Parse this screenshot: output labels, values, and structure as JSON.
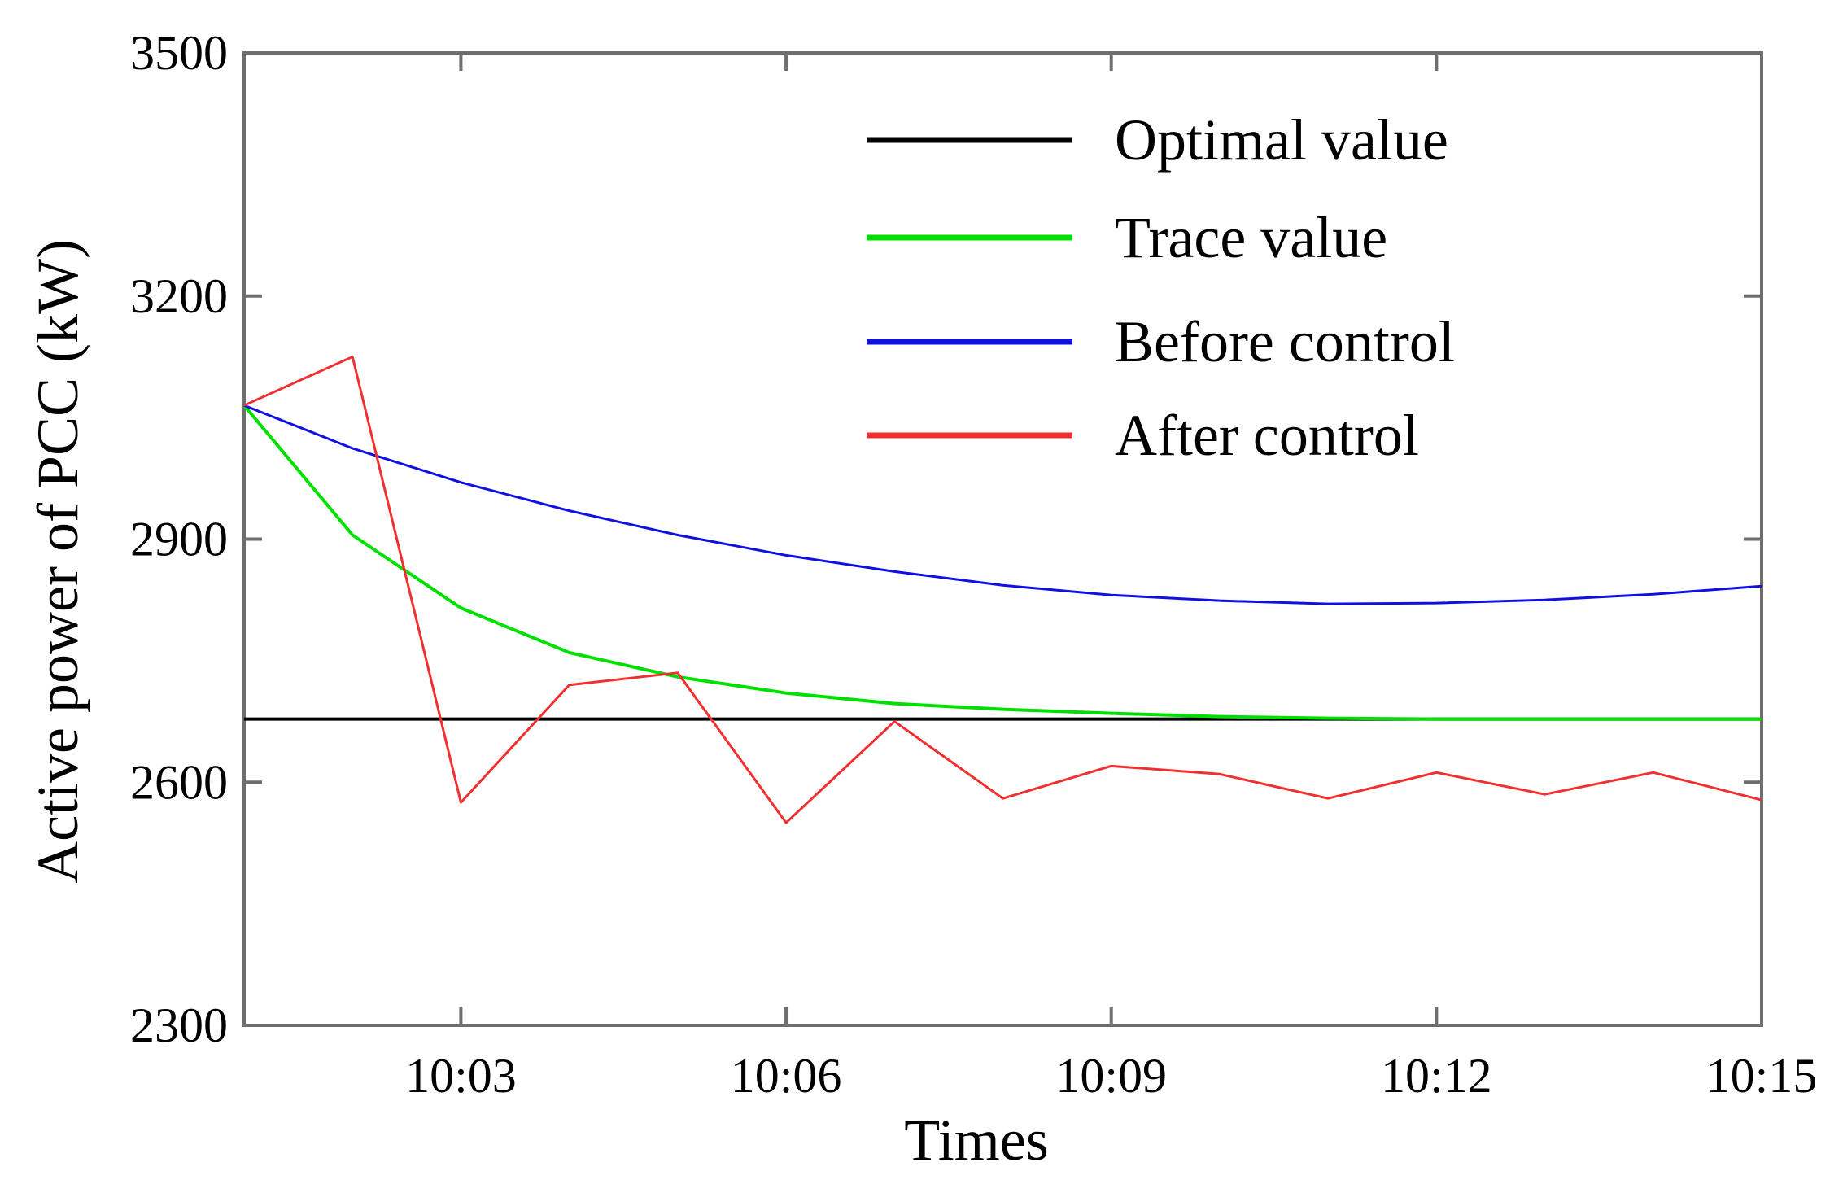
{
  "chart_data": {
    "type": "line",
    "title": "",
    "xlabel": "Times",
    "ylabel": "Active power of PCC (kW)",
    "x_ticks": [
      "10:03",
      "10:06",
      "10:09",
      "10:12",
      "10:15"
    ],
    "x_tick_positions_min": [
      3,
      6,
      9,
      12,
      15
    ],
    "xlim": [
      1,
      15
    ],
    "y_ticks": [
      "2300",
      "2600",
      "2900",
      "3200",
      "3500"
    ],
    "y_tick_values": [
      2300,
      2600,
      2900,
      3200,
      3500
    ],
    "ylim": [
      2300,
      3500
    ],
    "grid": false,
    "legend_position": "top-right",
    "x": [
      1,
      2,
      3,
      4,
      5,
      6,
      7,
      8,
      9,
      10,
      11,
      12,
      13,
      14,
      15
    ],
    "series": [
      {
        "name": "Optimal value",
        "color": "#000000",
        "values": [
          2678,
          2678,
          2678,
          2678,
          2678,
          2678,
          2678,
          2678,
          2678,
          2678,
          2678,
          2678,
          2678,
          2678,
          2678
        ]
      },
      {
        "name": "Trace value",
        "color": "#00e000",
        "values": [
          3065,
          2905,
          2815,
          2760,
          2730,
          2710,
          2697,
          2690,
          2685,
          2681,
          2679,
          2678,
          2678,
          2678,
          2678
        ]
      },
      {
        "name": "Before control",
        "color": "#1010e0",
        "values": [
          3065,
          3012,
          2970,
          2935,
          2905,
          2880,
          2860,
          2843,
          2831,
          2824,
          2820,
          2821,
          2825,
          2832,
          2842
        ]
      },
      {
        "name": "After control",
        "color": "#f03030",
        "values": [
          3065,
          3125,
          2575,
          2720,
          2735,
          2550,
          2675,
          2580,
          2620,
          2610,
          2580,
          2612,
          2585,
          2612,
          2578
        ]
      }
    ]
  }
}
